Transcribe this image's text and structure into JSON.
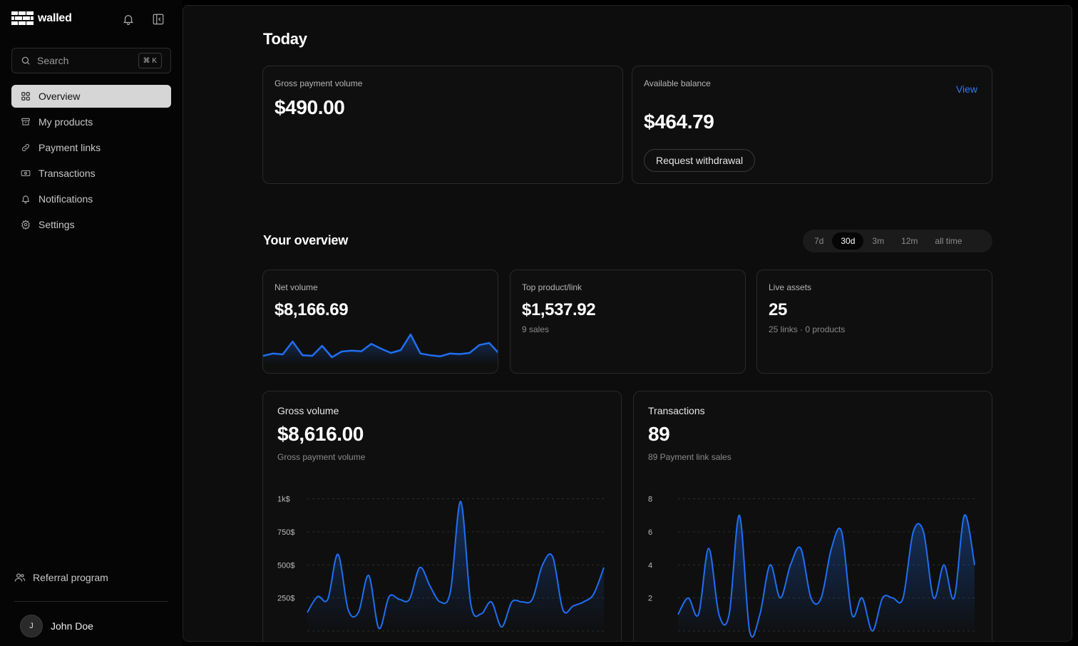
{
  "brand": {
    "name": "walled"
  },
  "search": {
    "placeholder": "Search",
    "shortcut": "⌘ K"
  },
  "nav": [
    {
      "label": "Overview",
      "icon": "grid-icon",
      "active": true
    },
    {
      "label": "My products",
      "icon": "archive-box-icon"
    },
    {
      "label": "Payment links",
      "icon": "link-icon"
    },
    {
      "label": "Transactions",
      "icon": "banknote-icon"
    },
    {
      "label": "Notifications",
      "icon": "bell-icon"
    },
    {
      "label": "Settings",
      "icon": "gear-icon"
    }
  ],
  "referral": {
    "label": "Referral program"
  },
  "user": {
    "initial": "J",
    "name": "John Doe"
  },
  "today": {
    "title": "Today",
    "gross": {
      "label": "Gross payment volume",
      "value": "$490.00"
    },
    "balance": {
      "label": "Available balance",
      "value": "$464.79",
      "view_label": "View",
      "withdraw_label": "Request withdrawal"
    }
  },
  "overview": {
    "title": "Your overview",
    "ranges": [
      "7d",
      "30d",
      "3m",
      "12m",
      "all time"
    ],
    "active_range": "30d",
    "net": {
      "label": "Net volume",
      "value": "$8,166.69"
    },
    "top": {
      "label": "Top product/link",
      "value": "$1,537.92",
      "sub": "9 sales"
    },
    "assets": {
      "label": "Live assets",
      "value": "25",
      "sub": "25 links · 0 products"
    },
    "gross_volume": {
      "title": "Gross volume",
      "value": "$8,616.00",
      "sub": "Gross payment volume"
    },
    "transactions": {
      "title": "Transactions",
      "value": "89",
      "sub": "89 Payment link sales"
    }
  },
  "colors": {
    "accent": "#1f6ff2",
    "link": "#2f7bf5"
  },
  "chart_data": [
    {
      "type": "line",
      "name": "net-volume-sparkline",
      "x": [
        1,
        2,
        3,
        4,
        5,
        6,
        7,
        8,
        9,
        10,
        11,
        12,
        13,
        14,
        15,
        16,
        17,
        18,
        19,
        20,
        21,
        22,
        23,
        24,
        25
      ],
      "values": [
        20,
        28,
        25,
        70,
        22,
        20,
        55,
        15,
        35,
        38,
        36,
        62,
        45,
        30,
        40,
        95,
        28,
        22,
        18,
        28,
        26,
        30,
        58,
        65,
        28
      ],
      "ylim": [
        0,
        100
      ]
    },
    {
      "type": "area",
      "name": "gross-volume",
      "y_ticks": [
        "1k$",
        "750$",
        "500$",
        "250$"
      ],
      "y_tick_values": [
        1000,
        750,
        500,
        250
      ],
      "ylim": [
        0,
        1100
      ],
      "x": [
        0,
        1,
        2,
        3,
        4,
        5,
        6,
        7,
        8,
        9,
        10,
        11,
        12,
        13,
        14,
        15,
        16,
        17,
        18,
        19,
        20,
        21,
        22,
        23,
        24,
        25,
        26,
        27,
        28,
        29
      ],
      "values": [
        140,
        260,
        240,
        580,
        160,
        140,
        420,
        20,
        260,
        240,
        240,
        480,
        340,
        220,
        300,
        980,
        200,
        130,
        220,
        30,
        220,
        220,
        240,
        500,
        560,
        160,
        190,
        220,
        280,
        480
      ]
    },
    {
      "type": "area",
      "name": "transactions",
      "y_ticks": [
        "8",
        "6",
        "4",
        "2"
      ],
      "y_tick_values": [
        8,
        6,
        4,
        2
      ],
      "ylim": [
        0,
        8.8
      ],
      "x": [
        0,
        1,
        2,
        3,
        4,
        5,
        6,
        7,
        8,
        9,
        10,
        11,
        12,
        13,
        14,
        15,
        16,
        17,
        18,
        19,
        20,
        21,
        22,
        23,
        24,
        25,
        26,
        27,
        28,
        29
      ],
      "values": [
        1,
        2,
        1,
        5,
        1,
        1,
        7,
        0,
        1,
        4,
        2,
        4,
        5,
        2,
        2,
        5,
        6,
        1,
        2,
        0,
        2,
        2,
        2,
        6,
        6,
        2,
        4,
        2,
        7,
        4
      ]
    }
  ]
}
